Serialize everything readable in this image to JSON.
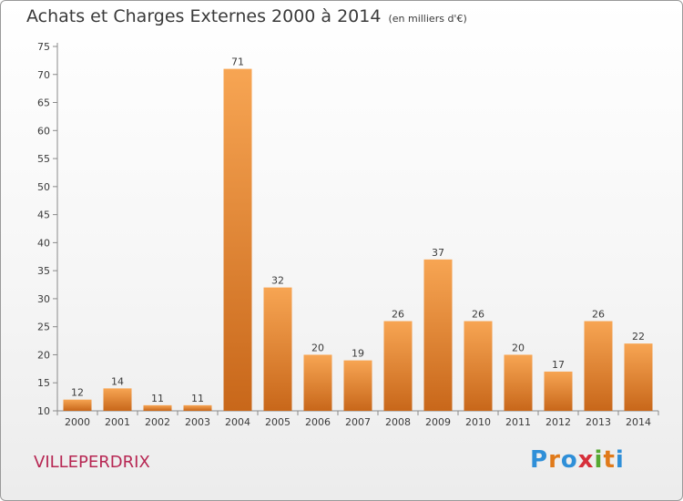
{
  "title": "Achats et Charges Externes 2000 à 2014",
  "subtitle": "(en milliers d'€)",
  "commune": "VILLEPERDRIX",
  "logo": {
    "letters": [
      "P",
      "r",
      "o",
      "x",
      "i",
      "t",
      "i"
    ],
    "colors": [
      "#2f8fd8",
      "#e07a1a",
      "#2f8fd8",
      "#d62f3a",
      "#56a832",
      "#e07a1a",
      "#2f8fd8"
    ]
  },
  "colors": {
    "bar_light": "#f7a553",
    "bar_dark": "#c8671a",
    "commune_text": "#b72753",
    "text": "#3a3a3a"
  },
  "chart_data": {
    "type": "bar",
    "title": "Achats et Charges Externes 2000 à 2014",
    "subtitle": "(en milliers d'€)",
    "categories": [
      "2000",
      "2001",
      "2002",
      "2003",
      "2004",
      "2005",
      "2006",
      "2007",
      "2008",
      "2009",
      "2010",
      "2011",
      "2012",
      "2013",
      "2014"
    ],
    "values": [
      12,
      14,
      11,
      11,
      71,
      32,
      20,
      19,
      26,
      37,
      26,
      20,
      17,
      26,
      22
    ],
    "ylim": [
      10,
      75
    ],
    "yticks": [
      10,
      15,
      20,
      25,
      30,
      35,
      40,
      45,
      50,
      55,
      60,
      65,
      70,
      75
    ],
    "grid": false,
    "data_labels": true
  }
}
